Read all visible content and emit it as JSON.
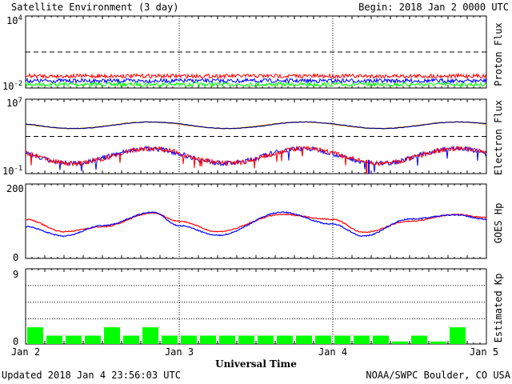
{
  "header": {
    "title": "Satellite Environment (3 day)",
    "begin": "Begin:  2018 Jan 2 0000 UTC"
  },
  "footer": {
    "updated": "Updated 2018 Jan  4 23:56:03 UTC",
    "credit": "NOAA/SWPC Boulder, CO USA",
    "xlabel": "Universal Time"
  },
  "colors": {
    "red": "#ff0000",
    "blue": "#0000ff",
    "green": "#00ff00",
    "orange": "#ffa500",
    "navy": "#00007f",
    "kp_bar": "#00ff00"
  },
  "chart_data": [
    {
      "id": "proton",
      "type": "line",
      "ylabel": "Proton Flux",
      "yscale": "log",
      "ytick_labels": [
        {
          "base": "10",
          "exp": "4"
        },
        {
          "base": "10",
          "exp": "-2"
        }
      ],
      "ylim": [
        0.01,
        10000
      ],
      "threshold": 10,
      "grid": "vertical dotted lines at day boundaries",
      "series": [
        {
          "color": "red",
          "approx_level": 0.1
        },
        {
          "color": "blue",
          "approx_level": 0.04
        },
        {
          "color": "green",
          "approx_level": 0.02
        }
      ]
    },
    {
      "id": "electron",
      "type": "line",
      "ylabel": "Electron Flux",
      "yscale": "log",
      "ytick_labels": [
        {
          "base": "10",
          "exp": "7"
        },
        {
          "base": "10",
          "exp": "-1"
        }
      ],
      "ylim": [
        0.1,
        10000000
      ],
      "threshold": 1000,
      "series": [
        {
          "color": "orange",
          "note": "upper pair ~10^4"
        },
        {
          "color": "navy",
          "note": "upper pair ~10^4"
        },
        {
          "color": "red",
          "note": "lower pair ~1-10"
        },
        {
          "color": "blue",
          "note": "lower pair ~1-10"
        }
      ]
    },
    {
      "id": "goes_hp",
      "type": "line",
      "ylabel": "GOES Hp",
      "ytick_labels": [
        "200",
        "0"
      ],
      "ylim": [
        0,
        200
      ],
      "series": [
        {
          "color": "red",
          "x": [
            0,
            0.25,
            0.5,
            0.83,
            1.0,
            1.25,
            1.67,
            2.0,
            2.2,
            2.5,
            2.8,
            3.0
          ],
          "y": [
            105,
            72,
            85,
            122,
            100,
            72,
            118,
            105,
            70,
            100,
            118,
            110
          ]
        },
        {
          "color": "blue",
          "x": [
            0,
            0.25,
            0.5,
            0.83,
            1.0,
            1.25,
            1.67,
            2.0,
            2.2,
            2.5,
            2.8,
            3.0
          ],
          "y": [
            85,
            60,
            88,
            124,
            88,
            62,
            124,
            92,
            60,
            106,
            117,
            105
          ]
        }
      ]
    },
    {
      "id": "kp",
      "type": "bar",
      "ylabel": "Estimated Kp",
      "ytick_labels": [
        "9",
        "0"
      ],
      "ylim": [
        0,
        9
      ],
      "values": [
        2,
        1,
        1,
        1,
        2,
        1,
        2,
        1,
        1,
        1,
        1,
        1,
        1,
        1,
        1,
        1,
        1,
        1,
        1,
        0.3,
        1,
        0.3,
        2,
        0
      ]
    }
  ],
  "xaxis": {
    "ticks": [
      "Jan 2",
      "Jan 3",
      "Jan 4",
      "Jan 5"
    ]
  }
}
